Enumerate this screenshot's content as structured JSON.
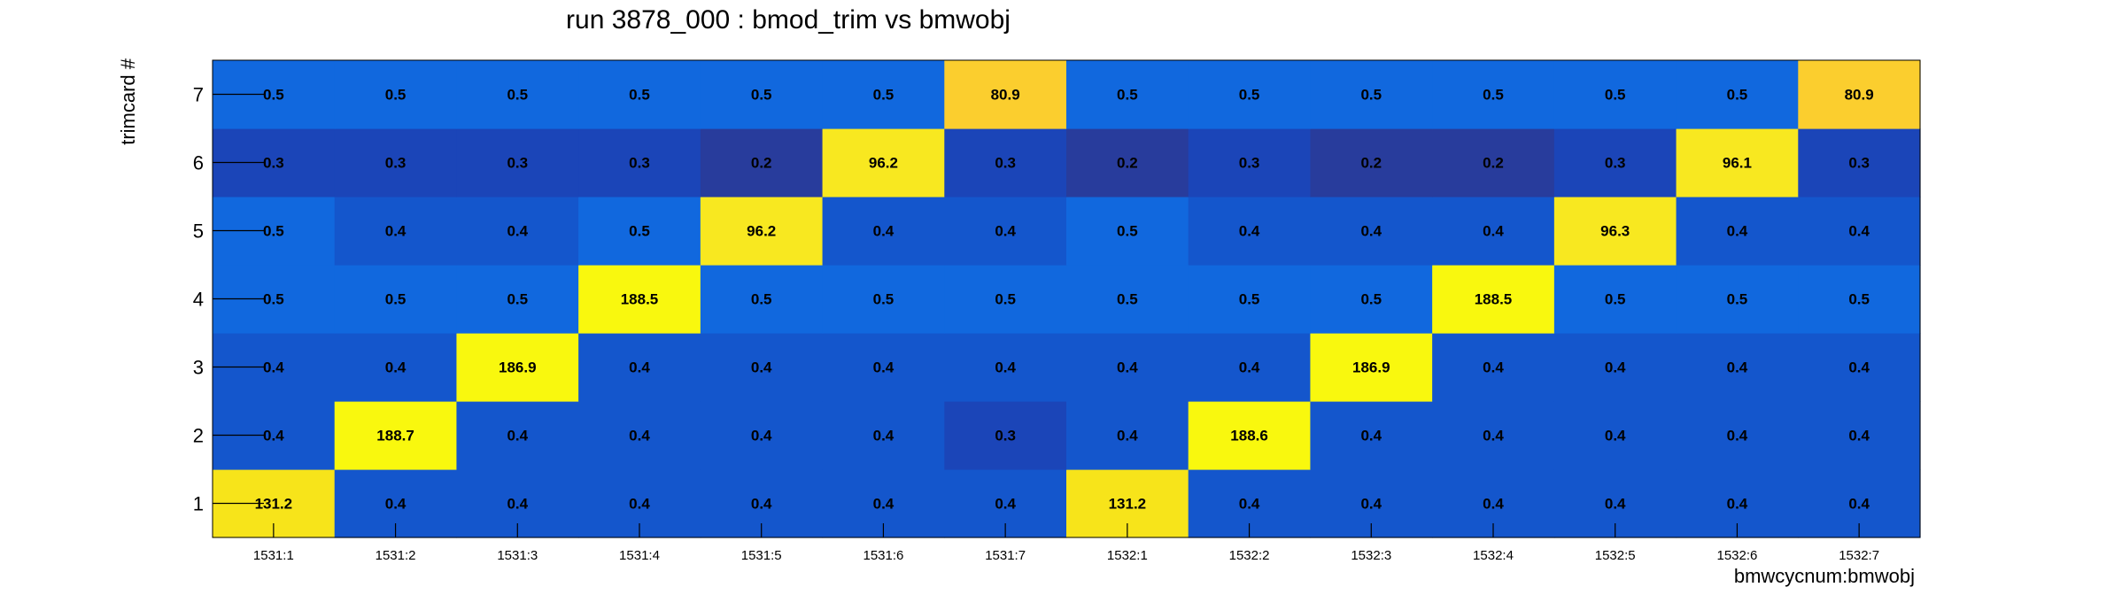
{
  "chart_data": {
    "type": "heatmap",
    "title": "run 3878_000 : bmod_trim vs bmwobj",
    "xlabel": "bmwcycnum:bmwobj",
    "ylabel": "trimcard #",
    "x_categories": [
      "1531:1",
      "1531:2",
      "1531:3",
      "1531:4",
      "1531:5",
      "1531:6",
      "1531:7",
      "1532:1",
      "1532:2",
      "1532:3",
      "1532:4",
      "1532:5",
      "1532:6",
      "1532:7"
    ],
    "y_categories": [
      "1",
      "2",
      "3",
      "4",
      "5",
      "6",
      "7"
    ],
    "values": [
      [
        131.2,
        0.4,
        0.4,
        0.4,
        0.4,
        0.4,
        0.4,
        131.2,
        0.4,
        0.4,
        0.4,
        0.4,
        0.4,
        0.4
      ],
      [
        0.4,
        188.7,
        0.4,
        0.4,
        0.4,
        0.4,
        0.3,
        0.4,
        188.6,
        0.4,
        0.4,
        0.4,
        0.4,
        0.4
      ],
      [
        0.4,
        0.4,
        186.9,
        0.4,
        0.4,
        0.4,
        0.4,
        0.4,
        0.4,
        186.9,
        0.4,
        0.4,
        0.4,
        0.4
      ],
      [
        0.5,
        0.5,
        0.5,
        188.5,
        0.5,
        0.5,
        0.5,
        0.5,
        0.5,
        0.5,
        188.5,
        0.5,
        0.5,
        0.5
      ],
      [
        0.5,
        0.4,
        0.4,
        0.5,
        96.2,
        0.4,
        0.4,
        0.5,
        0.4,
        0.4,
        0.4,
        96.3,
        0.4,
        0.4
      ],
      [
        0.3,
        0.3,
        0.3,
        0.3,
        0.2,
        96.2,
        0.3,
        0.2,
        0.3,
        0.2,
        0.2,
        0.3,
        96.1,
        0.3
      ],
      [
        0.5,
        0.5,
        0.5,
        0.5,
        0.5,
        0.5,
        80.9,
        0.5,
        0.5,
        0.5,
        0.5,
        0.5,
        0.5,
        80.9
      ]
    ],
    "grid": false,
    "colors": {
      "low": "#283c9c",
      "mid_low": "#1250c8",
      "mid": "#1168de",
      "high_mid": "#fbce2e",
      "high": "#f9f80e"
    }
  }
}
